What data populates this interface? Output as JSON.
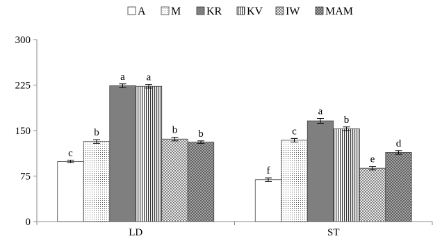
{
  "chart_data": {
    "type": "bar",
    "title": "",
    "xlabel": "",
    "ylabel": "",
    "categories": [
      "LD",
      "ST"
    ],
    "ylim": [
      0,
      300
    ],
    "yticks": [
      0,
      75,
      150,
      225,
      300
    ],
    "grid": false,
    "legend_position": "top",
    "series": [
      {
        "name": "A",
        "values": [
          99,
          69
        ],
        "errors": [
          2,
          3
        ],
        "letters": [
          "c",
          "f"
        ],
        "fill": "#ffffff",
        "pattern": "none"
      },
      {
        "name": "M",
        "values": [
          132,
          134
        ],
        "errors": [
          3,
          3
        ],
        "letters": [
          "b",
          "c"
        ],
        "fill": "#ffffff",
        "pattern": "dots"
      },
      {
        "name": "KR",
        "values": [
          224,
          166
        ],
        "errors": [
          3,
          4
        ],
        "letters": [
          "a",
          "a"
        ],
        "fill": "#7f7f7f",
        "pattern": "none"
      },
      {
        "name": "KV",
        "values": [
          223,
          153
        ],
        "errors": [
          3,
          3
        ],
        "letters": [
          "a",
          "b"
        ],
        "fill": "#ffffff",
        "pattern": "vlines"
      },
      {
        "name": "IW",
        "values": [
          136,
          88
        ],
        "errors": [
          3,
          3
        ],
        "letters": [
          "b",
          "e"
        ],
        "fill": "#ffffff",
        "pattern": "diamonds"
      },
      {
        "name": "MAM",
        "values": [
          131,
          114
        ],
        "errors": [
          2,
          3
        ],
        "letters": [
          "b",
          "d"
        ],
        "fill": "#9a9a9a",
        "pattern": "weave"
      }
    ]
  }
}
